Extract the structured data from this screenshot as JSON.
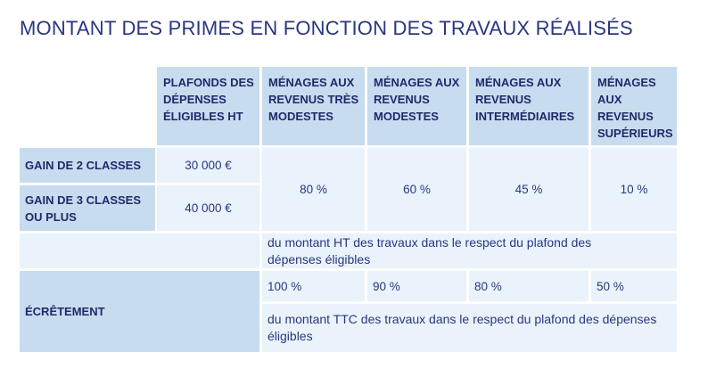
{
  "title": "MONTANT DES PRIMES EN FONCTION DES TRAVAUX RÉALISÉS",
  "headers": {
    "plafonds": "PLAFONDS DES DÉPENSES ÉLIGIBLES HT",
    "tres_modestes": "MÉNAGES AUX REVENUS TRÈS MODESTES",
    "modestes": "MÉNAGES AUX REVENUS MODESTES",
    "intermediaires": "MÉNAGES AUX REVENUS INTERMÉDIAIRES",
    "superieurs": "MÉNAGES AUX REVENUS SUPÉRIEURS"
  },
  "rows": {
    "gain2": {
      "label": "GAIN DE 2 CLASSES",
      "plafond": "30 000 €"
    },
    "gain3": {
      "label": "GAIN DE 3 CLASSES OU PLUS",
      "plafond": "40 000 €"
    }
  },
  "primes": {
    "tres_modestes": "80 %",
    "modestes": "60 %",
    "intermediaires": "45 %",
    "superieurs": "10 %",
    "note": "du montant HT des travaux dans le respect du plafond des dépenses éligibles"
  },
  "ecretement": {
    "label": "ÉCRÊTEMENT",
    "tres_modestes": "100 %",
    "modestes": "90 %",
    "intermediaires": "80 %",
    "superieurs": "50 %",
    "note": "du montant TTC des travaux dans le respect du plafond des dépenses éligibles"
  }
}
